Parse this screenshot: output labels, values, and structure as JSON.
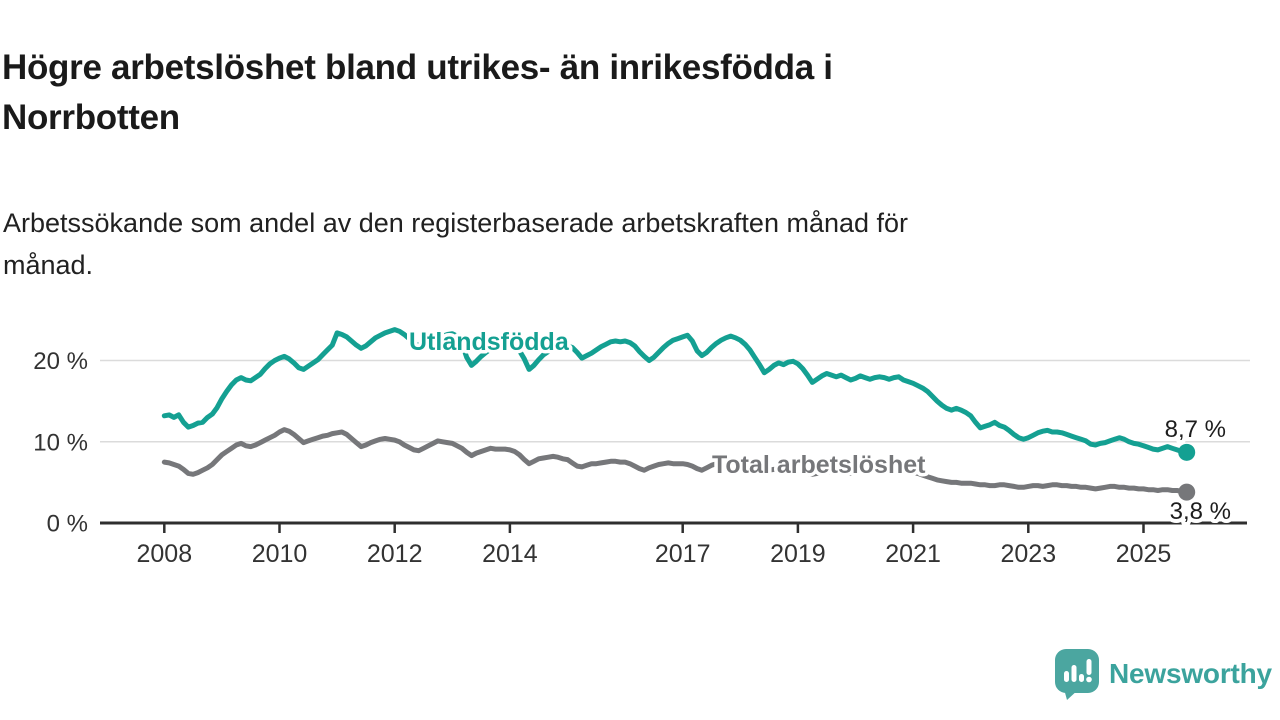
{
  "header": {
    "title": "Högre arbetslöshet bland utrikes- än inrikesfödda i Norrbotten",
    "title_lines": [
      "Högre arbetslöshet bland utrikes- än inrikesfödda i",
      "Norrbotten"
    ],
    "subtitle": "Arbetssökande som andel av den registerbaserade arbetskraften månad för månad.",
    "subtitle_lines": [
      "Arbetssökande som andel av den registerbaserade arbetskraften månad för",
      "månad."
    ]
  },
  "branding": {
    "logo_text": "Newsworthy",
    "logo_text_color": "#3ba39d",
    "bubble_color": "#4ba6a0"
  },
  "chart_data": {
    "type": "line",
    "title": "Högre arbetslöshet bland utrikes- än inrikesfödda i Norrbotten",
    "subtitle": "Arbetssökande som andel av den registerbaserade arbetskraften månad för månad.",
    "unit": "%",
    "x_start_year": 2008,
    "points_per_year": 12,
    "x_ticks": [
      2008,
      2010,
      2012,
      2014,
      2017,
      2019,
      2021,
      2023,
      2025
    ],
    "y_ticks": [
      {
        "value": 0,
        "label": "0 %"
      },
      {
        "value": 10,
        "label": "10 %"
      },
      {
        "value": 20,
        "label": "20 %"
      }
    ],
    "ylim": [
      0,
      24.6
    ],
    "grid": true,
    "grid_color": "#dbdbdb",
    "axis_color": "#2f2f2f",
    "tick_label_color": "#333333",
    "value_label_color": "#1d1d1d",
    "series": [
      {
        "name": "Utlandsfödda",
        "color": "#14a092",
        "end_value": 8.7,
        "end_label": "8,7 %",
        "values": [
          13.2,
          13.3,
          13.0,
          13.3,
          12.4,
          11.8,
          12.0,
          12.3,
          12.4,
          13.0,
          13.4,
          14.2,
          15.3,
          16.2,
          17.0,
          17.6,
          17.9,
          17.6,
          17.5,
          17.9,
          18.3,
          19.0,
          19.6,
          20.0,
          20.3,
          20.5,
          20.2,
          19.7,
          19.1,
          18.9,
          19.3,
          19.7,
          20.1,
          20.7,
          21.3,
          21.9,
          23.4,
          23.2,
          22.9,
          22.4,
          21.9,
          21.5,
          21.8,
          22.3,
          22.8,
          23.1,
          23.4,
          23.6,
          23.8,
          23.6,
          23.2,
          22.7,
          22.1,
          21.9,
          22.2,
          22.6,
          22.8,
          22.9,
          23.0,
          23.2,
          23.3,
          23.0,
          22.1,
          20.4,
          19.4,
          19.9,
          20.5,
          21.0,
          21.4,
          21.7,
          21.9,
          22.0,
          22.0,
          21.8,
          21.2,
          20.2,
          18.9,
          19.4,
          20.1,
          20.7,
          21.1,
          21.4,
          21.6,
          21.7,
          21.8,
          21.6,
          21.0,
          20.3,
          20.6,
          20.9,
          21.3,
          21.7,
          22.0,
          22.3,
          22.4,
          22.3,
          22.4,
          22.2,
          21.8,
          21.1,
          20.5,
          20.0,
          20.4,
          21.0,
          21.6,
          22.1,
          22.5,
          22.7,
          22.9,
          23.1,
          22.4,
          21.2,
          20.6,
          21.0,
          21.6,
          22.1,
          22.5,
          22.8,
          23.0,
          22.8,
          22.5,
          22.0,
          21.3,
          20.4,
          19.5,
          18.5,
          18.9,
          19.4,
          19.7,
          19.5,
          19.8,
          19.9,
          19.6,
          19.0,
          18.2,
          17.3,
          17.7,
          18.1,
          18.4,
          18.2,
          18.0,
          18.2,
          17.9,
          17.6,
          17.8,
          18.1,
          17.9,
          17.7,
          17.9,
          18.0,
          17.9,
          17.7,
          17.9,
          18.0,
          17.6,
          17.4,
          17.2,
          16.9,
          16.6,
          16.2,
          15.6,
          15.0,
          14.5,
          14.1,
          13.9,
          14.1,
          13.9,
          13.6,
          13.2,
          12.4,
          11.7,
          11.9,
          12.1,
          12.4,
          12.0,
          11.8,
          11.4,
          10.9,
          10.5,
          10.3,
          10.5,
          10.8,
          11.1,
          11.3,
          11.4,
          11.2,
          11.2,
          11.1,
          10.9,
          10.7,
          10.5,
          10.3,
          10.1,
          9.7,
          9.6,
          9.8,
          9.9,
          10.1,
          10.3,
          10.5,
          10.3,
          10.0,
          9.8,
          9.7,
          9.5,
          9.3,
          9.1,
          9.0,
          9.2,
          9.4,
          9.2,
          9.0,
          8.8,
          8.7
        ]
      },
      {
        "name": "Total arbetslöshet",
        "color": "#76777a",
        "end_value": 3.8,
        "end_label": "3,8 %",
        "values": [
          7.5,
          7.4,
          7.2,
          7.0,
          6.6,
          6.1,
          6.0,
          6.2,
          6.5,
          6.8,
          7.2,
          7.8,
          8.4,
          8.8,
          9.2,
          9.6,
          9.8,
          9.5,
          9.4,
          9.6,
          9.9,
          10.2,
          10.5,
          10.8,
          11.2,
          11.5,
          11.3,
          10.9,
          10.4,
          9.9,
          10.1,
          10.3,
          10.5,
          10.7,
          10.8,
          11.0,
          11.1,
          11.2,
          10.9,
          10.4,
          9.9,
          9.4,
          9.6,
          9.9,
          10.1,
          10.3,
          10.4,
          10.3,
          10.2,
          10.0,
          9.6,
          9.3,
          9.0,
          8.9,
          9.2,
          9.5,
          9.8,
          10.1,
          10.0,
          9.9,
          9.8,
          9.5,
          9.2,
          8.7,
          8.3,
          8.6,
          8.8,
          9.0,
          9.2,
          9.1,
          9.1,
          9.1,
          9.0,
          8.8,
          8.4,
          7.8,
          7.3,
          7.6,
          7.9,
          8.0,
          8.1,
          8.2,
          8.1,
          7.9,
          7.8,
          7.4,
          7.0,
          6.9,
          7.1,
          7.3,
          7.3,
          7.4,
          7.5,
          7.6,
          7.6,
          7.5,
          7.5,
          7.3,
          7.0,
          6.7,
          6.5,
          6.8,
          7.0,
          7.2,
          7.3,
          7.4,
          7.3,
          7.3,
          7.3,
          7.2,
          7.0,
          6.7,
          6.5,
          6.8,
          7.1,
          7.3,
          7.4,
          7.3,
          7.2,
          7.1,
          7.0,
          6.9,
          6.7,
          6.4,
          6.2,
          6.3,
          6.5,
          6.6,
          6.6,
          6.5,
          6.5,
          6.5,
          6.4,
          6.3,
          6.1,
          6.0,
          6.1,
          6.2,
          6.3,
          6.3,
          6.2,
          6.2,
          6.1,
          6.1,
          6.2,
          6.3,
          6.5,
          6.8,
          6.9,
          7.0,
          6.9,
          6.8,
          6.7,
          6.5,
          6.4,
          6.3,
          6.2,
          6.1,
          5.9,
          5.7,
          5.5,
          5.3,
          5.2,
          5.1,
          5.0,
          5.0,
          4.9,
          4.9,
          4.9,
          4.8,
          4.7,
          4.7,
          4.6,
          4.6,
          4.7,
          4.7,
          4.6,
          4.5,
          4.4,
          4.4,
          4.5,
          4.6,
          4.6,
          4.5,
          4.6,
          4.7,
          4.7,
          4.6,
          4.6,
          4.5,
          4.5,
          4.4,
          4.4,
          4.3,
          4.2,
          4.3,
          4.4,
          4.5,
          4.5,
          4.4,
          4.4,
          4.3,
          4.3,
          4.2,
          4.2,
          4.1,
          4.1,
          4.0,
          4.1,
          4.1,
          4.0,
          4.0,
          3.9,
          3.8
        ]
      }
    ],
    "legend_position": "inline-labels"
  }
}
